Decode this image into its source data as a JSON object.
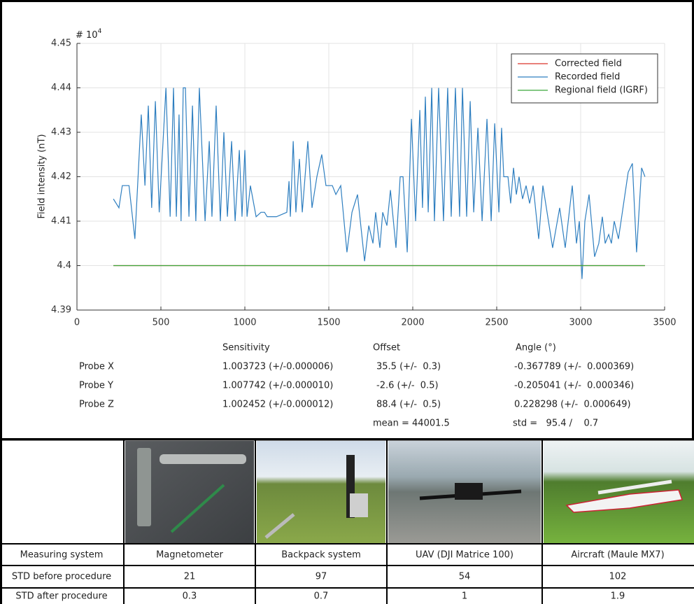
{
  "chart_data": {
    "type": "line",
    "y_label": "Field intensity (nT)",
    "y_multiplier": {
      "base": "# 10",
      "exponent": "4"
    },
    "xlim": [
      0,
      3500
    ],
    "xticks": [
      0,
      500,
      1000,
      1500,
      2000,
      2500,
      3000,
      3500
    ],
    "ylim": [
      4.39,
      4.45
    ],
    "yticks": [
      4.39,
      4.4,
      4.41,
      4.42,
      4.43,
      4.44,
      4.45
    ],
    "grid": true,
    "legend": "upper right",
    "series": [
      {
        "name": "Corrected field",
        "color": "#d9342b",
        "x": [
          217,
          600,
          1000,
          1500,
          2000,
          2500,
          3000,
          3383
        ],
        "values": [
          4.4,
          4.4,
          4.4,
          4.4,
          4.4,
          4.4,
          4.4,
          4.4
        ]
      },
      {
        "name": "Recorded field",
        "color": "#2f7fc0",
        "x": [
          217,
          250,
          270,
          310,
          345,
          383,
          405,
          425,
          445,
          467,
          490,
          530,
          555,
          575,
          592,
          608,
          620,
          633,
          646,
          667,
          688,
          708,
          729,
          763,
          788,
          804,
          829,
          854,
          875,
          896,
          921,
          942,
          967,
          983,
          1000,
          1013,
          1033,
          1067,
          1096,
          1117,
          1133,
          1188,
          1250,
          1263,
          1271,
          1288,
          1304,
          1325,
          1342,
          1375,
          1400,
          1429,
          1458,
          1483,
          1521,
          1542,
          1571,
          1608,
          1638,
          1671,
          1713,
          1738,
          1763,
          1779,
          1804,
          1821,
          1846,
          1867,
          1900,
          1925,
          1942,
          1967,
          1992,
          2017,
          2042,
          2058,
          2075,
          2092,
          2113,
          2129,
          2154,
          2183,
          2208,
          2229,
          2254,
          2279,
          2296,
          2321,
          2342,
          2363,
          2388,
          2413,
          2442,
          2467,
          2488,
          2513,
          2529,
          2542,
          2567,
          2583,
          2600,
          2617,
          2633,
          2654,
          2675,
          2696,
          2717,
          2750,
          2775,
          2833,
          2875,
          2908,
          2950,
          2975,
          2992,
          3008,
          3025,
          3050,
          3083,
          3108,
          3129,
          3146,
          3167,
          3183,
          3200,
          3225,
          3283,
          3308,
          3333,
          3363,
          3383
        ],
        "values": [
          4.415,
          4.413,
          4.418,
          4.418,
          4.406,
          4.434,
          4.418,
          4.436,
          4.413,
          4.437,
          4.412,
          4.44,
          4.411,
          4.44,
          4.411,
          4.434,
          4.41,
          4.44,
          4.44,
          4.411,
          4.436,
          4.41,
          4.44,
          4.41,
          4.428,
          4.411,
          4.436,
          4.41,
          4.43,
          4.411,
          4.428,
          4.41,
          4.426,
          4.411,
          4.426,
          4.411,
          4.418,
          4.411,
          4.412,
          4.412,
          4.411,
          4.411,
          4.412,
          4.419,
          4.411,
          4.428,
          4.412,
          4.424,
          4.412,
          4.428,
          4.413,
          4.42,
          4.425,
          4.418,
          4.418,
          4.416,
          4.418,
          4.403,
          4.412,
          4.416,
          4.401,
          4.409,
          4.405,
          4.412,
          4.404,
          4.412,
          4.409,
          4.417,
          4.404,
          4.42,
          4.42,
          4.403,
          4.433,
          4.41,
          4.435,
          4.413,
          4.438,
          4.412,
          4.44,
          4.41,
          4.44,
          4.41,
          4.44,
          4.411,
          4.44,
          4.411,
          4.44,
          4.411,
          4.437,
          4.412,
          4.431,
          4.41,
          4.433,
          4.41,
          4.432,
          4.412,
          4.431,
          4.42,
          4.42,
          4.414,
          4.422,
          4.416,
          4.42,
          4.415,
          4.418,
          4.414,
          4.418,
          4.406,
          4.418,
          4.404,
          4.413,
          4.404,
          4.418,
          4.405,
          4.41,
          4.397,
          4.41,
          4.416,
          4.402,
          4.405,
          4.411,
          4.405,
          4.407,
          4.405,
          4.41,
          4.406,
          4.421,
          4.423,
          4.403,
          4.422,
          4.42
        ]
      },
      {
        "name": "Regional field (IGRF)",
        "color": "#3aa63a",
        "x": [
          217,
          3383
        ],
        "values": [
          4.4,
          4.4
        ]
      }
    ]
  },
  "calibration": {
    "headers": [
      "Sensitivity",
      "Offset",
      "Angle (°)"
    ],
    "rows": [
      [
        "Probe X",
        "1.003723 (+/-0.000006)",
        "35.5 (+/-  0.3)",
        "-0.367789 (+/-  0.000369)"
      ],
      [
        "Probe Y",
        "1.007742 (+/-0.000010)",
        "-2.6 (+/-  0.5)",
        "-0.205041 (+/-  0.000346)"
      ],
      [
        "Probe Z",
        "1.002452 (+/-0.000012)",
        "88.4 (+/-  0.5)",
        "0.228298 (+/-  0.000649)"
      ]
    ],
    "mean": "mean = 44001.5",
    "std": "std =   95.4 /    0.7"
  },
  "comparison": {
    "systems_label": "Measuring system",
    "systems": [
      "Magnetometer",
      "Backpack system",
      "UAV (DJI Matrice 100)",
      "Aircraft (Maule MX7)"
    ],
    "rows": [
      {
        "label": "STD before procedure",
        "values": [
          21,
          97,
          54,
          102
        ]
      },
      {
        "label": "STD after procedure",
        "values": [
          0.3,
          0.7,
          1,
          1.9
        ]
      }
    ]
  }
}
